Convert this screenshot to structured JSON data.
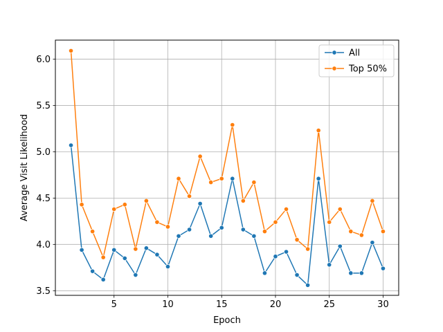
{
  "chart_data": {
    "type": "line",
    "title": "",
    "xlabel": "Epoch",
    "ylabel": "Average Visit Likelihood",
    "xlim": [
      -0.45,
      31.45
    ],
    "ylim": [
      3.45,
      6.205
    ],
    "xticks": [
      5,
      10,
      15,
      20,
      25,
      30
    ],
    "yticks": [
      3.5,
      4.0,
      4.5,
      5.0,
      5.5,
      6.0
    ],
    "xtick_labels": [
      "5",
      "10",
      "15",
      "20",
      "25",
      "30"
    ],
    "ytick_labels": [
      "3.5",
      "4.0",
      "4.5",
      "5.0",
      "5.5",
      "6.0"
    ],
    "grid": true,
    "legend_position": "top-right",
    "x": [
      1,
      2,
      3,
      4,
      5,
      6,
      7,
      8,
      9,
      10,
      11,
      12,
      13,
      14,
      15,
      16,
      17,
      18,
      19,
      20,
      21,
      22,
      23,
      24,
      25,
      26,
      27,
      28,
      29,
      30
    ],
    "series": [
      {
        "name": "All",
        "color": "#1f77b4",
        "marker": "circle",
        "values": [
          5.07,
          3.94,
          3.71,
          3.62,
          3.94,
          3.85,
          3.67,
          3.96,
          3.89,
          3.76,
          4.09,
          4.16,
          4.44,
          4.09,
          4.18,
          4.71,
          4.16,
          4.09,
          3.69,
          3.87,
          3.92,
          3.67,
          3.56,
          4.71,
          3.78,
          3.98,
          3.69,
          3.69,
          4.02,
          3.74
        ]
      },
      {
        "name": "Top 50%",
        "color": "#ff7f0e",
        "marker": "circle",
        "values": [
          6.09,
          4.43,
          4.14,
          3.86,
          4.38,
          4.43,
          3.95,
          4.47,
          4.24,
          4.19,
          4.71,
          4.52,
          4.95,
          4.67,
          4.71,
          5.29,
          4.47,
          4.67,
          4.14,
          4.24,
          4.38,
          4.05,
          3.95,
          5.23,
          4.24,
          4.38,
          4.14,
          4.1,
          4.47,
          4.14
        ]
      }
    ]
  }
}
